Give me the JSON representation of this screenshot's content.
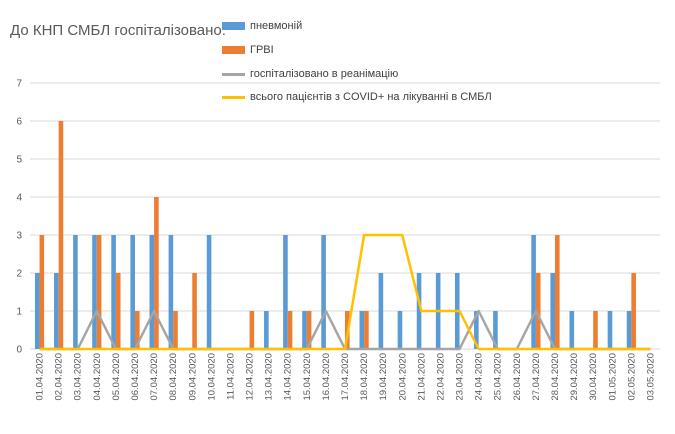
{
  "chart_data": {
    "type": "bar",
    "title": "До КНП СМБЛ госпіталізовано:",
    "xlabel": "",
    "ylabel": "",
    "ylim": [
      0,
      7
    ],
    "yticks": [
      0,
      1,
      2,
      3,
      4,
      5,
      6,
      7
    ],
    "grid": true,
    "legend_position": "top-right",
    "categories": [
      "01.04.2020",
      "02.04.2020",
      "03.04.2020",
      "04.04.2020",
      "05.04.2020",
      "06.04.2020",
      "07.04.2020",
      "08.04.2020",
      "09.04.2020",
      "10.04.2020",
      "11.04.2020",
      "12.04.2020",
      "13.04.2020",
      "14.04.2020",
      "15.04.2020",
      "16.04.2020",
      "17.04.2020",
      "18.04.2020",
      "19.04.2020",
      "20.04.2020",
      "21.04.2020",
      "22.04.2020",
      "23.04.2020",
      "24.04.2020",
      "25.04.2020",
      "26.04.2020",
      "27.04.2020",
      "28.04.2020",
      "29.04.2020",
      "30.04.2020",
      "01.05.2020",
      "02.05.2020",
      "03.05.2020"
    ],
    "series": [
      {
        "name": "пневмоній",
        "kind": "bar",
        "color": "#5b9bd5",
        "values": [
          2,
          2,
          3,
          3,
          3,
          3,
          3,
          3,
          0,
          3,
          0,
          0,
          1,
          3,
          1,
          3,
          0,
          1,
          2,
          1,
          2,
          2,
          2,
          1,
          1,
          0,
          3,
          2,
          1,
          0,
          1,
          1,
          0
        ]
      },
      {
        "name": "ГРВІ",
        "kind": "bar",
        "color": "#ed7d31",
        "values": [
          3,
          6,
          0,
          3,
          2,
          1,
          4,
          1,
          2,
          0,
          0,
          1,
          0,
          1,
          1,
          0,
          1,
          1,
          0,
          0,
          0,
          0,
          0,
          0,
          0,
          0,
          2,
          3,
          0,
          1,
          0,
          2,
          0
        ]
      },
      {
        "name": "госпіталізовано в реанімацію",
        "kind": "line",
        "color": "#a5a5a5",
        "values": [
          0,
          0,
          0,
          1,
          0,
          0,
          1,
          0,
          0,
          0,
          0,
          0,
          0,
          0,
          0,
          1,
          0,
          0,
          0,
          0,
          0,
          0,
          0,
          1,
          0,
          0,
          1,
          0,
          0,
          0,
          0,
          0,
          0
        ]
      },
      {
        "name": "всього пацієнтів з COVID+ на лікуванні в СМБЛ",
        "kind": "line",
        "color": "#ffc000",
        "values": [
          0,
          0,
          0,
          0,
          0,
          0,
          0,
          0,
          0,
          0,
          0,
          0,
          0,
          0,
          0,
          0,
          0,
          3,
          3,
          3,
          1,
          1,
          1,
          0,
          0,
          0,
          0,
          0,
          0,
          0,
          0,
          0,
          0
        ]
      }
    ]
  }
}
